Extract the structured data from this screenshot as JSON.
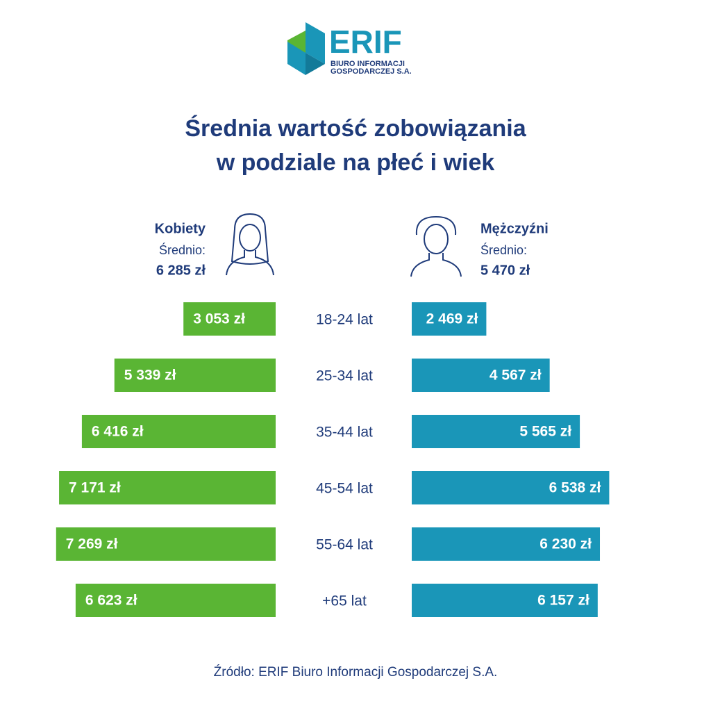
{
  "logo": {
    "name": "ERIF",
    "line1": "BIURO INFORMACJI",
    "line2": "GOSPODARCZEJ S.A."
  },
  "chart_data": {
    "type": "butterfly",
    "title": [
      "Średnia wartość zobowiązania",
      "w podziale na płeć i wiek"
    ],
    "categories": [
      "18-24 lat",
      "25-34 lat",
      "35-44 lat",
      "45-54 lat",
      "55-64 lat",
      "+65 lat"
    ],
    "series": [
      {
        "name": "Kobiety",
        "color": "#5ab534",
        "average_caption": "Średnio:",
        "average": {
          "value": 6285,
          "label": "6 285 zł"
        },
        "values": [
          3053,
          5339,
          6416,
          7171,
          7269,
          6623
        ],
        "value_labels": [
          "3 053 zł",
          "5 339 zł",
          "6 416 zł",
          "7 171 zł",
          "7 269 zł",
          "6 623 zł"
        ]
      },
      {
        "name": "Mężczyźni",
        "color": "#1a96b8",
        "average_caption": "Średnio:",
        "average": {
          "value": 5470,
          "label": "5 470 zł"
        },
        "values": [
          2469,
          4567,
          5565,
          6538,
          6230,
          6157
        ],
        "value_labels": [
          "2 469 zł",
          "4 567 zł",
          "5 565 zł",
          "6 538 zł",
          "6 230 zł",
          "6 157 zł"
        ]
      }
    ],
    "source": "Źródło: ERIF Biuro Informacji Gospodarczej S.A."
  }
}
